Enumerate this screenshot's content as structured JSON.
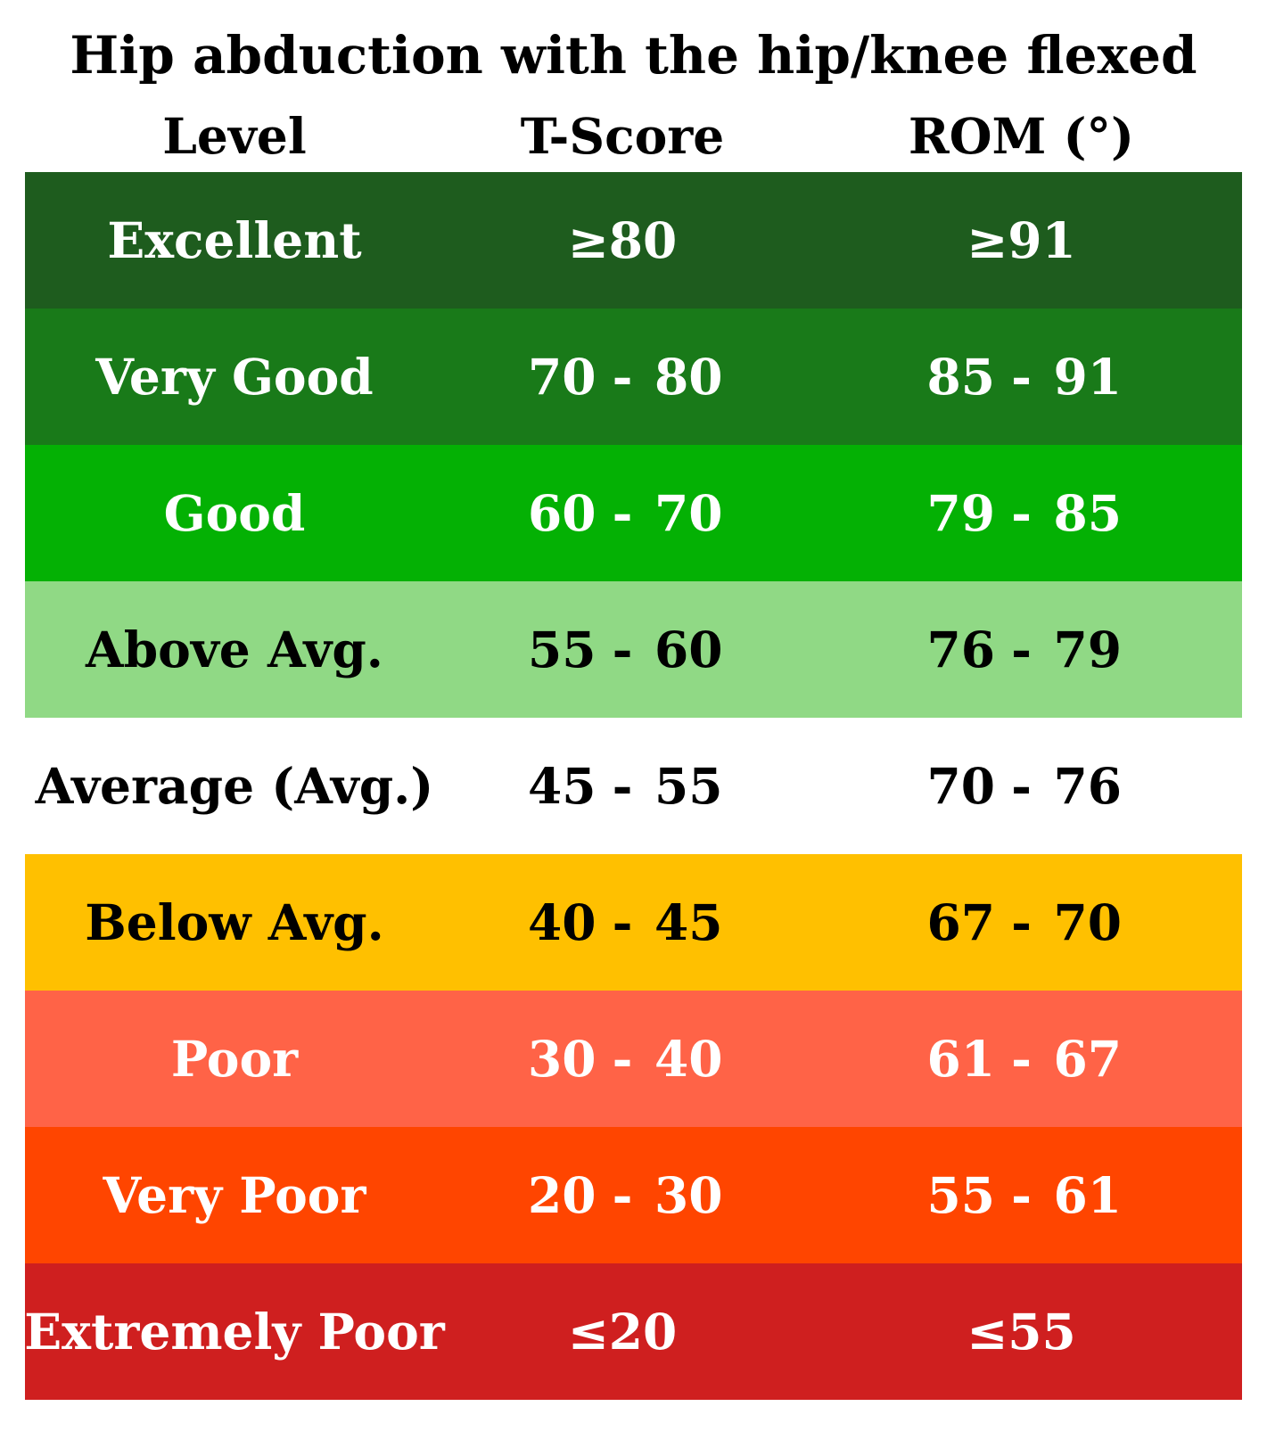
{
  "title": "Hip abduction with the hip/knee flexed",
  "headers": {
    "level": "Level",
    "tscore": "T-Score",
    "rom": "ROM (°)"
  },
  "rows": [
    {
      "level": "Excellent",
      "tscore": "≥80",
      "rom": "≥91",
      "bg": "#1E5C1E",
      "fg": "#FFFFFF"
    },
    {
      "level": "Very Good",
      "tscore_low": "70",
      "tscore_high": "80",
      "rom_low": "85",
      "rom_high": "91",
      "bg": "#197A19",
      "fg": "#FFFFFF"
    },
    {
      "level": "Good",
      "tscore_low": "60",
      "tscore_high": "70",
      "rom_low": "79",
      "rom_high": "85",
      "bg": "#04B104",
      "fg": "#FFFFFF"
    },
    {
      "level": "Above Avg.",
      "tscore_low": "55",
      "tscore_high": "60",
      "rom_low": "76",
      "rom_high": "79",
      "bg": "#90D985",
      "fg": "#000000"
    },
    {
      "level": "Average (Avg.)",
      "tscore_low": "45",
      "tscore_high": "55",
      "rom_low": "70",
      "rom_high": "76",
      "bg": "#FFFFFF",
      "fg": "#000000"
    },
    {
      "level": "Below Avg.",
      "tscore_low": "40",
      "tscore_high": "45",
      "rom_low": "67",
      "rom_high": "70",
      "bg": "#FFC000",
      "fg": "#000000"
    },
    {
      "level": "Poor",
      "tscore_low": "30",
      "tscore_high": "40",
      "rom_low": "61",
      "rom_high": "67",
      "bg": "#FF6347",
      "fg": "#FFFFFF"
    },
    {
      "level": "Very Poor",
      "tscore_low": "20",
      "tscore_high": "30",
      "rom_low": "55",
      "rom_high": "61",
      "bg": "#FF4500",
      "fg": "#FFFFFF"
    },
    {
      "level": "Extremely Poor",
      "tscore": "≤20",
      "rom": "≤55",
      "bg": "#CF1F1F",
      "fg": "#FFFFFF"
    }
  ],
  "range_separator": "-"
}
